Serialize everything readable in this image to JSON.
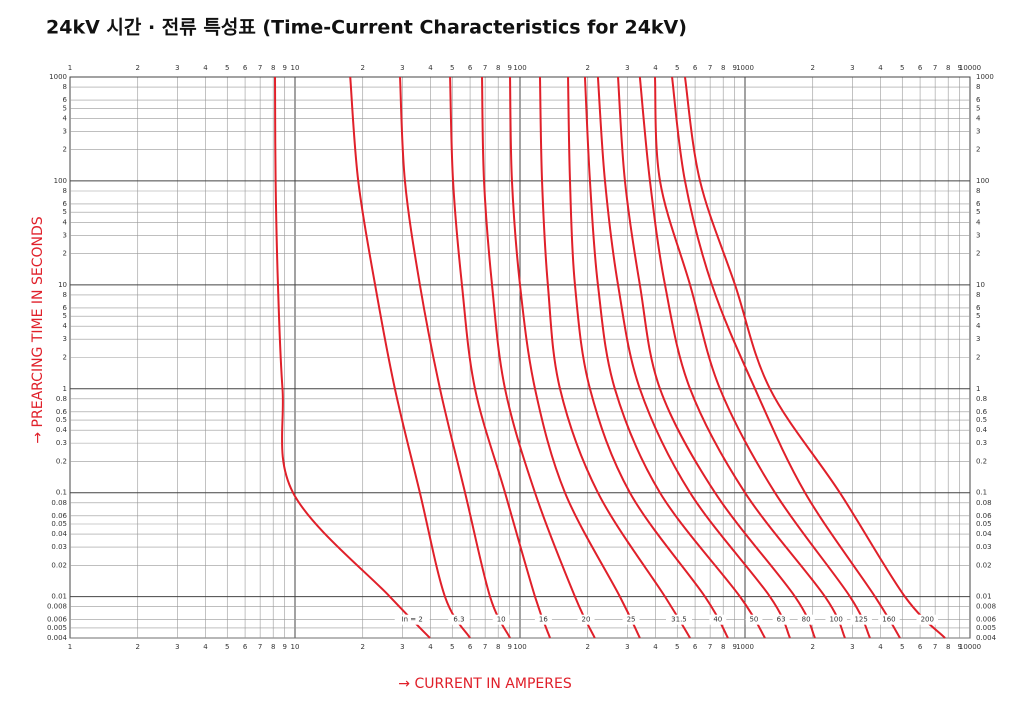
{
  "chart_data": {
    "type": "line",
    "title": "24kV 시간 · 전류 특성표 (Time-Current Characteristics for 24kV)",
    "y_label": "→ PREARCING TIME IN SECONDS",
    "x_label": "→ CURRENT IN AMPERES",
    "log_x": true,
    "log_y": true,
    "grid": true,
    "xlim": [
      1,
      10000
    ],
    "ylim": [
      0.004,
      1000
    ],
    "xticks": [
      1,
      2,
      3,
      4,
      5,
      6,
      7,
      8,
      9,
      10,
      {
        "value": 20,
        "label": "2"
      },
      {
        "value": 30,
        "label": "3"
      },
      {
        "value": 40,
        "label": "4"
      },
      {
        "value": 50,
        "label": "5"
      },
      {
        "value": 60,
        "label": "6"
      },
      {
        "value": 70,
        "label": "7"
      },
      {
        "value": 80,
        "label": "8"
      },
      {
        "value": 90,
        "label": "9"
      },
      100,
      {
        "value": 200,
        "label": "2"
      },
      {
        "value": 300,
        "label": "3"
      },
      {
        "value": 400,
        "label": "4"
      },
      {
        "value": 500,
        "label": "5"
      },
      {
        "value": 600,
        "label": "6"
      },
      {
        "value": 700,
        "label": "7"
      },
      {
        "value": 800,
        "label": "8"
      },
      {
        "value": 900,
        "label": "9"
      },
      1000,
      {
        "value": 2000,
        "label": "2"
      },
      {
        "value": 3000,
        "label": "3"
      },
      {
        "value": 4000,
        "label": "4"
      },
      {
        "value": 5000,
        "label": "5"
      },
      {
        "value": 6000,
        "label": "6"
      },
      {
        "value": 7000,
        "label": "7"
      },
      {
        "value": 8000,
        "label": "8"
      },
      {
        "value": 9000,
        "label": "9"
      },
      10000
    ],
    "yticks": [
      0.004,
      0.005,
      0.006,
      0.008,
      0.01,
      0.02,
      0.03,
      0.04,
      0.05,
      0.06,
      0.08,
      0.1,
      0.2,
      0.3,
      0.4,
      0.5,
      0.6,
      0.8,
      1,
      2,
      3,
      4,
      5,
      6,
      8,
      10,
      {
        "value": 20,
        "label": "2"
      },
      {
        "value": 30,
        "label": "3"
      },
      {
        "value": 40,
        "label": "4"
      },
      {
        "value": 50,
        "label": "5"
      },
      {
        "value": 60,
        "label": "6"
      },
      {
        "value": 80,
        "label": "8"
      },
      100,
      {
        "value": 200,
        "label": "2"
      },
      {
        "value": 300,
        "label": "3"
      },
      {
        "value": 400,
        "label": "4"
      },
      {
        "value": 500,
        "label": "5"
      },
      {
        "value": 600,
        "label": "6"
      },
      {
        "value": 800,
        "label": "8"
      },
      1000
    ],
    "series": [
      {
        "name": "In = 2",
        "color": "#e0202a",
        "x": [
          8.15,
          8.2,
          8.4,
          8.8,
          9.8,
          26.4,
          39.8
        ],
        "values": [
          1000,
          100,
          10,
          1,
          0.1,
          0.01,
          0.004
        ]
      },
      {
        "name": "6.3",
        "color": "#e0202a",
        "x": [
          17.6,
          19.1,
          22.7,
          27.8,
          35.9,
          46.4,
          60
        ],
        "values": [
          1000,
          100,
          10,
          1,
          0.1,
          0.01,
          0.004
        ]
      },
      {
        "name": "10",
        "color": "#e0202a",
        "x": [
          29.3,
          30.8,
          35.9,
          44.1,
          57,
          73.6,
          90.3
        ],
        "values": [
          1000,
          100,
          10,
          1,
          0.1,
          0.01,
          0.004
        ]
      },
      {
        "name": "16",
        "color": "#e0202a",
        "x": [
          48.9,
          50.4,
          55.2,
          63.1,
          85.8,
          116.6,
          136
        ],
        "values": [
          1000,
          100,
          10,
          1,
          0.1,
          0.01,
          0.004
        ]
      },
      {
        "name": "20",
        "color": "#e0202a",
        "x": [
          67.8,
          69.2,
          75.1,
          85.8,
          116.6,
          175.5,
          215
        ],
        "values": [
          1000,
          100,
          10,
          1,
          0.1,
          0.01,
          0.004
        ]
      },
      {
        "name": "25",
        "color": "#e0202a",
        "x": [
          90.3,
          92.1,
          100,
          116.6,
          158.5,
          278,
          341
        ],
        "values": [
          1000,
          100,
          10,
          1,
          0.1,
          0.01,
          0.004
        ]
      },
      {
        "name": "31.5",
        "color": "#e0202a",
        "x": [
          122.7,
          125.3,
          133,
          150.6,
          222,
          441,
          570
        ],
        "values": [
          1000,
          100,
          10,
          1,
          0.1,
          0.01,
          0.004
        ]
      },
      {
        "name": "40",
        "color": "#e0202a",
        "x": [
          163.5,
          166.8,
          175.5,
          204.6,
          308,
          664,
          840
        ],
        "values": [
          1000,
          100,
          10,
          1,
          0.1,
          0.01,
          0.004
        ]
      },
      {
        "name": "50",
        "color": "#e0202a",
        "x": [
          194.4,
          204.6,
          222,
          264,
          419,
          950,
          1227
        ],
        "values": [
          1000,
          100,
          10,
          1,
          0.1,
          0.01,
          0.004
        ]
      },
      {
        "name": "63",
        "color": "#e0202a",
        "x": [
          222,
          238.6,
          272.7,
          341,
          570,
          1291,
          1585
        ],
        "values": [
          1000,
          100,
          10,
          1,
          0.1,
          0.01,
          0.004
        ]
      },
      {
        "name": "80",
        "color": "#e0202a",
        "x": [
          272.7,
          292.7,
          341,
          419,
          736,
          1668,
          2047
        ],
        "values": [
          1000,
          100,
          10,
          1,
          0.1,
          0.01,
          0.004
        ]
      },
      {
        "name": "100",
        "color": "#e0202a",
        "x": [
          341,
          378,
          441,
          570,
          1000,
          2268,
          2783
        ],
        "values": [
          1000,
          100,
          10,
          1,
          0.1,
          0.01,
          0.004
        ]
      },
      {
        "name": "125",
        "color": "#e0202a",
        "x": [
          398,
          419,
          570,
          774,
          1359,
          2929,
          3594
        ],
        "values": [
          1000,
          100,
          10,
          1,
          0.1,
          0.01,
          0.004
        ]
      },
      {
        "name": "160",
        "color": "#e0202a",
        "x": [
          474,
          541,
          713,
          1108,
          1849,
          3784,
          4885
        ],
        "values": [
          1000,
          100,
          10,
          1,
          0.1,
          0.01,
          0.004
        ]
      },
      {
        "name": "200",
        "color": "#e0202a",
        "x": [
          541,
          631,
          903,
          1291,
          2640,
          5137,
          7744
        ],
        "values": [
          1000,
          100,
          10,
          1,
          0.1,
          0.01,
          0.004
        ]
      }
    ]
  }
}
